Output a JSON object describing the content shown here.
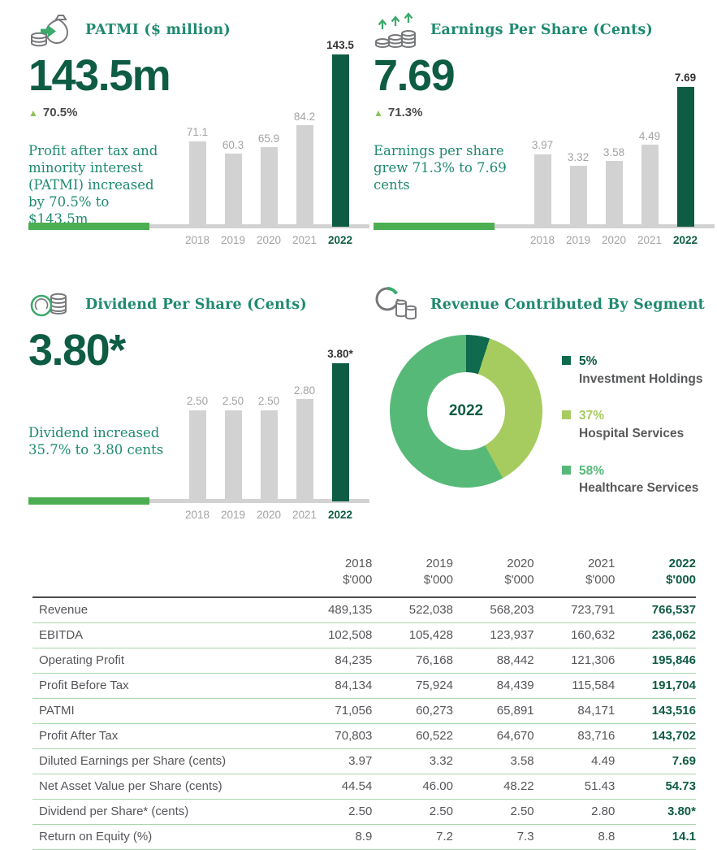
{
  "colors": {
    "brand_dark_green": "#0E5C44",
    "teal_heading": "#1F8A70",
    "up_triangle_green": "#8DC455",
    "axis_green": "#4CAE52",
    "bar_gray": "#D2D2D2",
    "investment_green": "#0F6A4E",
    "hospital_green": "#A6CB5F",
    "healthcare_green": "#57B978"
  },
  "panels": {
    "patmi": {
      "title": "PATMI ($ million)",
      "icon": "money-bag-icon",
      "big_number": "143.5m",
      "change": "70.5%",
      "description": "Profit after tax and minority interest (PATMI) increased by 70.5% to $143.5m"
    },
    "eps": {
      "title": "Earnings Per Share (Cents)",
      "icon": "coin-stacks-growth-icon",
      "big_number": "7.69",
      "change": "71.3%",
      "description": "Earnings per share grew 71.3% to 7.69 cents"
    },
    "dps": {
      "title": "Dividend Per Share (Cents)",
      "icon": "coin-dividend-icon",
      "big_number": "3.80*",
      "description": "Dividend increased 35.7% to 3.80 cents"
    },
    "segments": {
      "title": "Revenue Contributed By Segment",
      "icon": "segment-donut-icon",
      "center_label": "2022"
    }
  },
  "chart_data": [
    {
      "type": "bar",
      "title": "PATMI ($ million)",
      "categories": [
        "2018",
        "2019",
        "2020",
        "2021",
        "2022"
      ],
      "values": [
        71.1,
        60.3,
        65.9,
        84.2,
        143.5
      ],
      "value_labels": [
        "71.1",
        "60.3",
        "65.9",
        "84.2",
        "143.5"
      ],
      "xlabel": "",
      "ylabel": "",
      "ylim": [
        0,
        143.5
      ],
      "highlight_last": true,
      "grid": false,
      "legend": "none"
    },
    {
      "type": "bar",
      "title": "Earnings Per Share (Cents)",
      "categories": [
        "2018",
        "2019",
        "2020",
        "2021",
        "2022"
      ],
      "values": [
        3.97,
        3.32,
        3.58,
        4.49,
        7.69
      ],
      "value_labels": [
        "3.97",
        "3.32",
        "3.58",
        "4.49",
        "7.69"
      ],
      "xlabel": "",
      "ylabel": "",
      "ylim": [
        0,
        7.69
      ],
      "highlight_last": true,
      "grid": false,
      "legend": "none"
    },
    {
      "type": "bar",
      "title": "Dividend Per Share (Cents)",
      "categories": [
        "2018",
        "2019",
        "2020",
        "2021",
        "2022"
      ],
      "values": [
        2.5,
        2.5,
        2.5,
        2.8,
        3.8
      ],
      "value_labels": [
        "2.50",
        "2.50",
        "2.50",
        "2.80",
        "3.80*"
      ],
      "xlabel": "",
      "ylabel": "",
      "ylim": [
        0,
        3.8
      ],
      "highlight_last": true,
      "grid": false,
      "legend": "none"
    },
    {
      "type": "pie",
      "title": "Revenue Contributed By Segment",
      "center_label": "2022",
      "donut_hole_pct": 50,
      "start_angle_deg": 0,
      "legend": "right",
      "slices": [
        {
          "label": "Investment Holdings",
          "pct": 5,
          "color": "#0F6A4E"
        },
        {
          "label": "Hospital Services",
          "pct": 37,
          "color": "#A6CB5F"
        },
        {
          "label": "Healthcare Services",
          "pct": 58,
          "color": "#57B978"
        }
      ]
    }
  ],
  "table": {
    "columns": [
      {
        "year": "2018",
        "unit": "$'000"
      },
      {
        "year": "2019",
        "unit": "$'000"
      },
      {
        "year": "2020",
        "unit": "$'000"
      },
      {
        "year": "2021",
        "unit": "$'000"
      },
      {
        "year": "2022",
        "unit": "$'000"
      }
    ],
    "rows": [
      {
        "label": "Revenue",
        "values": [
          "489,135",
          "522,038",
          "568,203",
          "723,791",
          "766,537"
        ]
      },
      {
        "label": "EBITDA",
        "values": [
          "102,508",
          "105,428",
          "123,937",
          "160,632",
          "236,062"
        ]
      },
      {
        "label": "Operating Profit",
        "values": [
          "84,235",
          "76,168",
          "88,442",
          "121,306",
          "195,846"
        ]
      },
      {
        "label": "Profit Before Tax",
        "values": [
          "84,134",
          "75,924",
          "84,439",
          "115,584",
          "191,704"
        ]
      },
      {
        "label": "PATMI",
        "values": [
          "71,056",
          "60,273",
          "65,891",
          "84,171",
          "143,516"
        ]
      },
      {
        "label": "Profit After Tax",
        "values": [
          "70,803",
          "60,522",
          "64,670",
          "83,716",
          "143,702"
        ]
      },
      {
        "label": "Diluted Earnings per Share (cents)",
        "values": [
          "3.97",
          "3.32",
          "3.58",
          "4.49",
          "7.69"
        ]
      },
      {
        "label": "Net Asset Value per Share (cents)",
        "values": [
          "44.54",
          "46.00",
          "48.22",
          "51.43",
          "54.73"
        ]
      },
      {
        "label": "Dividend per Share* (cents)",
        "values": [
          "2.50",
          "2.50",
          "2.50",
          "2.80",
          "3.80*"
        ]
      },
      {
        "label": "Return on Equity (%)",
        "values": [
          "8.9",
          "7.2",
          "7.3",
          "8.8",
          "14.1"
        ]
      }
    ]
  }
}
